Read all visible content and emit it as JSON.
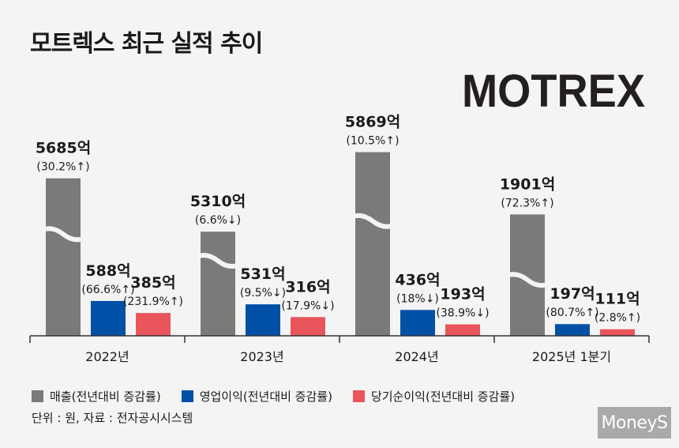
{
  "title": "모트렉스 최근 실적 추이",
  "logo_text": "MOTREX",
  "colors": {
    "revenue": "#7a7a7a",
    "operating": "#0050a8",
    "net": "#e9555b",
    "logo": "#231f20",
    "logo_accent": "#1e6fc0"
  },
  "chart_data": {
    "type": "bar",
    "title": "모트렉스 최근 실적 추이",
    "categories": [
      "2022년",
      "2023년",
      "2024년",
      "2025년 1분기"
    ],
    "series": [
      {
        "name": "매출",
        "values": [
          5685,
          5310,
          5869,
          1901
        ],
        "labels": [
          "5685억",
          "5310억",
          "5869억",
          "1901억"
        ],
        "changes": [
          "(30.2%↑)",
          "(6.6%↓)",
          "(10.5%↑)",
          "(72.3%↑)"
        ]
      },
      {
        "name": "영업이익",
        "values": [
          588,
          531,
          436,
          197
        ],
        "labels": [
          "588억",
          "531억",
          "436억",
          "197억"
        ],
        "changes": [
          "(66.6%↑)",
          "(9.5%↓)",
          "(18%↓)",
          "(80.7%↑)"
        ]
      },
      {
        "name": "당기순이익",
        "values": [
          385,
          316,
          193,
          111
        ],
        "labels": [
          "385억",
          "316억",
          "193억",
          "111억"
        ],
        "changes": [
          "(231.9%↑)",
          "(17.9%↓)",
          "(38.9%↓)",
          "(2.8%↑)"
        ]
      }
    ],
    "axis_break": true,
    "ylabel": "",
    "xlabel": ""
  },
  "legend": [
    {
      "label": "매출(전년대비 증감률)"
    },
    {
      "label": "영업이익(전년대비 증감률)"
    },
    {
      "label": "당기순이익(전년대비 증감률)"
    }
  ],
  "source": "단위 : 원, 자료 : 전자공시시스템",
  "watermark": "MoneyS"
}
